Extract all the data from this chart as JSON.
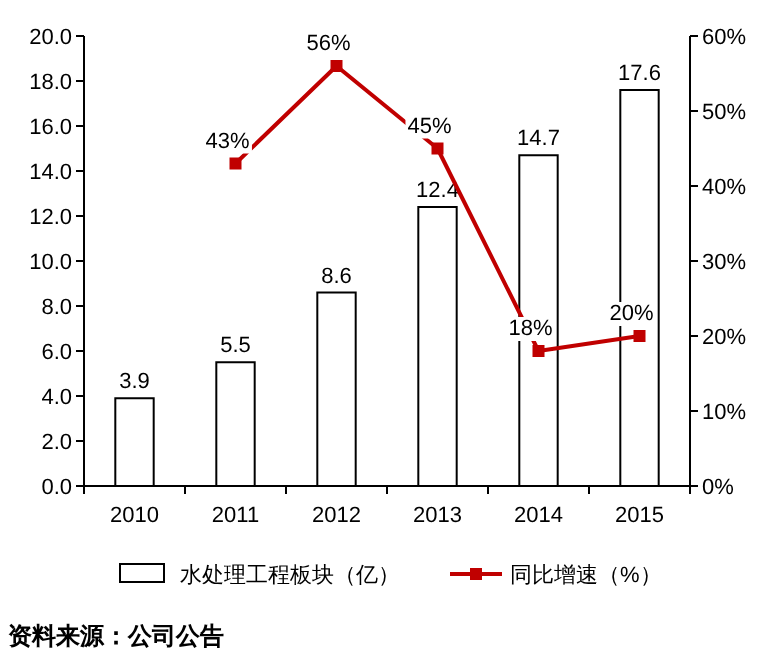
{
  "chart_data": {
    "type": "bar",
    "categories": [
      "2010",
      "2011",
      "2012",
      "2013",
      "2014",
      "2015"
    ],
    "series": [
      {
        "name": "水处理工程板块（亿）",
        "color": "#ffffff",
        "values": [
          3.9,
          5.5,
          8.6,
          12.4,
          14.7,
          17.6
        ],
        "value_labels": [
          "3.9",
          "5.5",
          "8.6",
          "12.4",
          "14.7",
          "17.6"
        ]
      },
      {
        "name": "同比增速（%）",
        "type": "line",
        "axis": "y2",
        "color": "#c00000",
        "values": [
          null,
          43,
          56,
          45,
          18,
          20
        ],
        "value_labels": [
          null,
          "43%",
          "56%",
          "45%",
          "18%",
          "20%"
        ]
      }
    ],
    "ylim": [
      0,
      20
    ],
    "yticks": [
      {
        "value": 0,
        "label": "0.0"
      },
      {
        "value": 2,
        "label": "2.0"
      },
      {
        "value": 4,
        "label": "4.0"
      },
      {
        "value": 6,
        "label": "6.0"
      },
      {
        "value": 8,
        "label": "8.0"
      },
      {
        "value": 10,
        "label": "10.0"
      },
      {
        "value": 12,
        "label": "12.0"
      },
      {
        "value": 14,
        "label": "14.0"
      },
      {
        "value": 16,
        "label": "16.0"
      },
      {
        "value": 18,
        "label": "18.0"
      },
      {
        "value": 20,
        "label": "20.0"
      }
    ],
    "y2lim": [
      0,
      60
    ],
    "y2ticks": [
      {
        "value": 0,
        "label": "0%"
      },
      {
        "value": 10,
        "label": "10%"
      },
      {
        "value": 20,
        "label": "20%"
      },
      {
        "value": 30,
        "label": "30%"
      },
      {
        "value": 40,
        "label": "40%"
      },
      {
        "value": 50,
        "label": "50%"
      },
      {
        "value": 60,
        "label": "60%"
      }
    ],
    "marker": "square",
    "line_style": "solid",
    "legend": "bottom",
    "annotations": [
      "资料来源：公司公告"
    ]
  }
}
